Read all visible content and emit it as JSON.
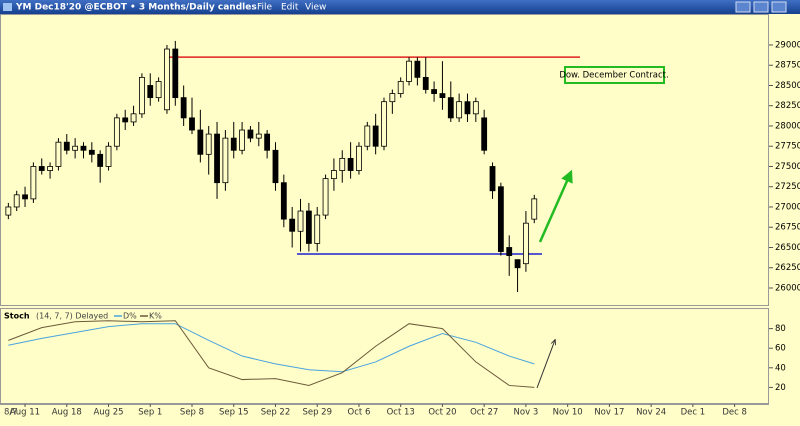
{
  "chart_data": {
    "type": "candlestick",
    "title": "YM Dec18'20 @ECBOT • 3 Months/Daily candles",
    "menu": [
      "File",
      "Edit",
      "View"
    ],
    "xlim": [
      -1,
      91
    ],
    "xticks": [
      {
        "value": 2,
        "label": "Aug 11"
      },
      {
        "value": 7,
        "label": "Aug 18"
      },
      {
        "value": 12,
        "label": "Aug 25"
      },
      {
        "value": 17,
        "label": "Sep 1"
      },
      {
        "value": 22,
        "label": "Sep 8"
      },
      {
        "value": 27,
        "label": "Sep 15"
      },
      {
        "value": 32,
        "label": "Sep 22"
      },
      {
        "value": 37,
        "label": "Sep 29"
      },
      {
        "value": 42,
        "label": "Oct 6"
      },
      {
        "value": 47,
        "label": "Oct 13"
      },
      {
        "value": 52,
        "label": "Oct 20"
      },
      {
        "value": 57,
        "label": "Oct 27"
      },
      {
        "value": 62,
        "label": "Nov 3"
      },
      {
        "value": 67,
        "label": "Nov 10"
      },
      {
        "value": 72,
        "label": "Nov 17"
      },
      {
        "value": 77,
        "label": "Nov 24"
      },
      {
        "value": 82,
        "label": "Dec 1"
      },
      {
        "value": 87,
        "label": "Dec 8"
      }
    ],
    "start_label": "8/7",
    "ylim": [
      25790,
      29370
    ],
    "yticks": [
      26000,
      26250,
      26500,
      26750,
      27000,
      27250,
      27500,
      27750,
      28000,
      28250,
      28500,
      28750,
      29000
    ],
    "open": [
      26900,
      27000,
      27150,
      27100,
      27500,
      27450,
      27500,
      27800,
      27700,
      27750,
      27700,
      27650,
      27500,
      27750,
      28100,
      28050,
      28150,
      28500,
      28350,
      28200,
      28950,
      28350,
      28100,
      27950,
      27650,
      27900,
      27300,
      27850,
      27700,
      27950,
      27850,
      27900,
      27700,
      27300,
      26850,
      26700,
      26950,
      26550,
      26900,
      27350,
      27450,
      27600,
      27450,
      27750,
      28000,
      27750,
      28300,
      28400,
      28550,
      28800,
      28600,
      28450,
      28400,
      28350,
      28100,
      28300,
      28150,
      28100,
      27500,
      27250,
      26500,
      26350,
      26300,
      26850
    ],
    "high": [
      27050,
      27200,
      27250,
      27550,
      27600,
      27550,
      27850,
      27900,
      27850,
      27800,
      27800,
      27700,
      27800,
      28150,
      28200,
      28250,
      28650,
      28650,
      28600,
      29000,
      29050,
      28500,
      28350,
      28200,
      28000,
      28050,
      27950,
      28050,
      28050,
      28000,
      28050,
      27950,
      27800,
      27400,
      27000,
      27100,
      27050,
      27000,
      27400,
      27600,
      27700,
      27800,
      27800,
      28050,
      28150,
      28350,
      28450,
      28600,
      28850,
      28850,
      28850,
      28550,
      28800,
      28550,
      28400,
      28400,
      28350,
      28200,
      27550,
      27300,
      26650,
      26350,
      26950,
      27150
    ],
    "low": [
      26850,
      26950,
      27000,
      27050,
      27400,
      27350,
      27450,
      27650,
      27600,
      27600,
      27550,
      27300,
      27450,
      27700,
      27950,
      28000,
      28100,
      28250,
      28300,
      28150,
      28250,
      28000,
      27900,
      27550,
      27400,
      27100,
      27200,
      27600,
      27650,
      27800,
      27750,
      27600,
      27200,
      26750,
      26500,
      26450,
      26450,
      26450,
      26850,
      27200,
      27300,
      27350,
      27400,
      27700,
      27650,
      27700,
      28150,
      28350,
      28500,
      28500,
      28400,
      28300,
      28200,
      28050,
      28050,
      28050,
      28050,
      27650,
      27100,
      26400,
      26150,
      25950,
      26200,
      26800
    ],
    "close": [
      27000,
      27150,
      27100,
      27500,
      27450,
      27500,
      27800,
      27700,
      27750,
      27700,
      27650,
      27500,
      27750,
      28100,
      28050,
      28150,
      28600,
      28350,
      28550,
      28950,
      28350,
      28100,
      27950,
      27650,
      27900,
      27300,
      27850,
      27700,
      27950,
      27850,
      27900,
      27700,
      27300,
      26850,
      26700,
      26950,
      26550,
      26900,
      27350,
      27450,
      27600,
      27450,
      27750,
      28000,
      27750,
      28300,
      28400,
      28550,
      28800,
      28600,
      28450,
      28400,
      28350,
      28100,
      28300,
      28150,
      28300,
      27700,
      27200,
      26450,
      26400,
      26250,
      26800,
      27100
    ],
    "levels": [
      {
        "value": 28850,
        "color": "#e02020"
      },
      {
        "value": 26420,
        "color": "#2020d0"
      }
    ],
    "annotation": "Dow. December Contract.",
    "stoch": {
      "title": "Stoch",
      "params": "(14, 7, 7) Delayed",
      "ylim": [
        0,
        100
      ],
      "yticks": [
        20,
        40,
        60,
        80
      ],
      "x": [
        0,
        4,
        8,
        12,
        16,
        20,
        24,
        28,
        32,
        36,
        40,
        44,
        48,
        52,
        56,
        60,
        63
      ],
      "series": [
        {
          "name": "D%",
          "color": "#4aa3df",
          "values": [
            63,
            70,
            76,
            82,
            85,
            85,
            68,
            52,
            44,
            38,
            36,
            46,
            62,
            75,
            66,
            52,
            44
          ]
        },
        {
          "name": "K%",
          "color": "#6b5a3a",
          "values": [
            68,
            81,
            87,
            88,
            87,
            88,
            40,
            28,
            29,
            22,
            35,
            62,
            85,
            80,
            46,
            22,
            20
          ]
        }
      ]
    }
  }
}
